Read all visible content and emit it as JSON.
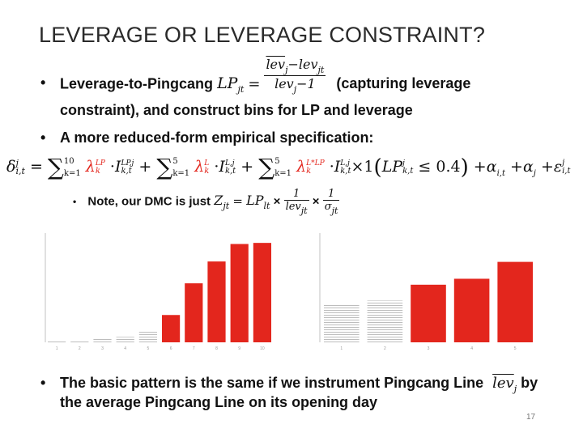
{
  "slide": {
    "title": "LEVERAGE OR LEVERAGE CONSTRAINT?",
    "bullet1_text": "Leverage-to-Pingcang",
    "bullet1_lp": "LP",
    "bullet1_lp_sub": "jt",
    "bullet1_num": "lev",
    "bullet1_num_sub1": "j",
    "bullet1_num_minus": "−lev",
    "bullet1_num_sub2": "jt",
    "bullet1_den": "lev",
    "bullet1_den_sub": "j",
    "bullet1_den_rest": "−1",
    "bullet1_after": "(capturing leverage",
    "bullet1_line2": "constraint), and construct bins for LP and leverage",
    "bullet2_text": "A more reduced-form empirical specification:",
    "note_text": "Note, our DMC is just",
    "note_z": "Z",
    "note_z_sub": "jt",
    "note_lp": "LP",
    "note_lp_sub": "lt",
    "note_frac1_num": "1",
    "note_frac1_den": "lev",
    "note_frac1_den_sub": "jt",
    "note_frac2_num": "1",
    "note_frac2_den": "σ",
    "note_frac2_den_sub": "jt",
    "bullet3_text": "The basic pattern is the same if we instrument Pingcang Line",
    "bullet3_lev": "lev",
    "bullet3_lev_sub": "j",
    "bullet3_after": "by",
    "bullet3_line2": "the average Pingcang Line on its opening day",
    "page_number": "17"
  },
  "equation": {
    "lhs": "δ",
    "lhs_sup": "j",
    "lhs_sub": "i,t",
    "sum1_upper": "10",
    "sum1_lower": "k=1",
    "lambda1": "λ",
    "lambda1_sub": "k",
    "lambda1_sup": "LP",
    "ind1": "I",
    "ind1_sup": "LP,j",
    "ind1_sub": "k,t",
    "sum2_upper": "5",
    "sum2_lower": "k=1",
    "lambda2": "λ",
    "lambda2_sub": "k",
    "lambda2_sup": "L",
    "ind2": "I",
    "ind2_sup": "L,j",
    "ind2_sub": "k,t",
    "sum3_upper": "5",
    "sum3_lower": "k=1",
    "lambda3": "λ",
    "lambda3_sub": "k",
    "lambda3_sup": "L*LP",
    "ind3": "I",
    "ind3_sup": "L,j",
    "ind3_sub": "k,t",
    "cond_times": "×1",
    "cond_lp": "LP",
    "cond_lp_sup": "j",
    "cond_lp_sub": "k,t",
    "cond_rel": "≤ 0.4",
    "alpha1": "α",
    "alpha1_sub": "i,t",
    "alpha2": "α",
    "alpha2_sub": "j",
    "eps": "ε",
    "eps_sup": "j",
    "eps_sub": "i,t"
  },
  "colors": {
    "accent": "#e3261d",
    "title": "#2a2a2a",
    "hatch": "#bdbdbd"
  },
  "chart_data": [
    {
      "type": "bar",
      "categories": [
        "1",
        "2",
        "3",
        "4",
        "5",
        "6",
        "7",
        "8",
        "9",
        "10"
      ],
      "values": [
        0.003,
        0.004,
        0.006,
        0.01,
        0.022,
        0.05,
        0.108,
        0.148,
        0.18,
        0.182
      ],
      "highlighted": [
        false,
        false,
        false,
        false,
        false,
        true,
        true,
        true,
        true,
        true
      ],
      "ylim": [
        0,
        0.2
      ]
    },
    {
      "type": "bar",
      "categories": [
        "1",
        "2",
        "3",
        "4",
        "5"
      ],
      "values": [
        0.038,
        0.042,
        0.058,
        0.064,
        0.081
      ],
      "highlighted": [
        false,
        false,
        true,
        true,
        true
      ],
      "ylim": [
        0,
        0.11
      ]
    }
  ]
}
